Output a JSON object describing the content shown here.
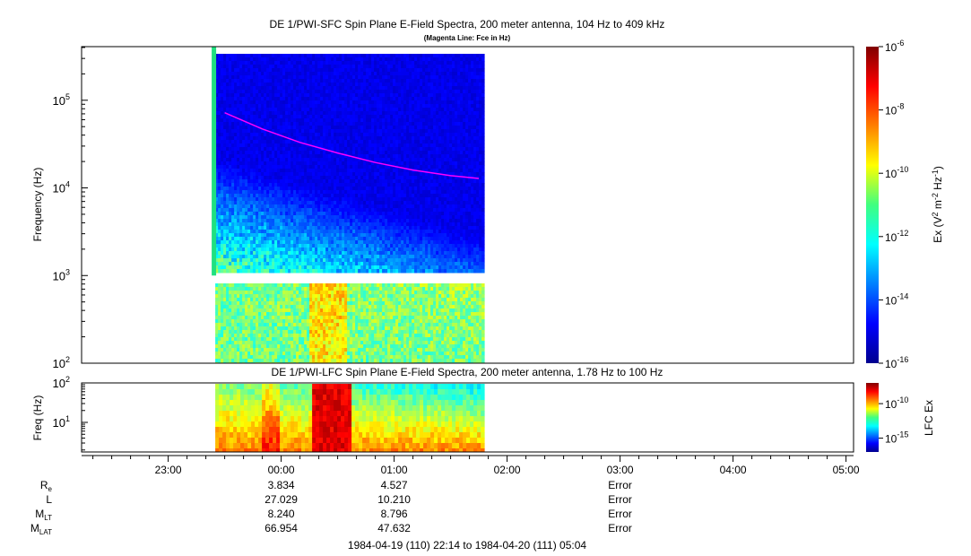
{
  "chart_data": [
    {
      "type": "heatmap",
      "title": "DE 1/PWI-SFC  Spin Plane E-Field Spectra, 200 meter antenna, 104 Hz to 409 kHz",
      "subtitle": "(Magenta Line: Fce in Hz)",
      "ylabel": "Frequency (Hz)",
      "y_scale": "log",
      "ylim": [
        100,
        409000
      ],
      "y_ticks": [
        {
          "value": 100,
          "base": "10",
          "exp": "2"
        },
        {
          "value": 1000,
          "base": "10",
          "exp": "3"
        },
        {
          "value": 10000,
          "base": "10",
          "exp": "4"
        },
        {
          "value": 100000,
          "base": "10",
          "exp": "5"
        }
      ],
      "data_coverage": {
        "start": "1984-04-19T23:25",
        "end": "1984-04-20T01:47",
        "gap_hz": [
          890,
          1000
        ]
      },
      "annotation_line": {
        "name": "Fce",
        "color": "#ff00ff",
        "points": [
          {
            "t": "1984-04-19T23:30",
            "hz": 72000
          },
          {
            "t": "1984-04-19T23:50",
            "hz": 47000
          },
          {
            "t": "1984-04-20T00:10",
            "hz": 33000
          },
          {
            "t": "1984-04-20T00:30",
            "hz": 25000
          },
          {
            "t": "1984-04-20T00:50",
            "hz": 19500
          },
          {
            "t": "1984-04-20T01:10",
            "hz": 16000
          },
          {
            "t": "1984-04-20T01:30",
            "hz": 13800
          },
          {
            "t": "1984-04-20T01:45",
            "hz": 12800
          }
        ]
      },
      "colorbar": {
        "label_parts": {
          "base": "Ex (V",
          "exp1": "2",
          "mid": " m",
          "exp2": "-2",
          "mid2": " Hz",
          "exp3": "-1",
          "end": ")"
        },
        "range_log10": [
          -16,
          -6
        ],
        "ticks": [
          {
            "value": -6,
            "base": "10",
            "exp": "-6"
          },
          {
            "value": -8,
            "base": "10",
            "exp": "-8"
          },
          {
            "value": -10,
            "base": "10",
            "exp": "-10"
          },
          {
            "value": -12,
            "base": "10",
            "exp": "-12"
          },
          {
            "value": -14,
            "base": "10",
            "exp": "-14"
          },
          {
            "value": -16,
            "base": "10",
            "exp": "-16"
          }
        ]
      }
    },
    {
      "type": "heatmap",
      "title": "DE 1/PWI-LFC  Spin Plane E-Field Spectra, 200 meter antenna, 1.78 Hz to 100 Hz",
      "ylabel": "Freq (Hz)",
      "y_scale": "log",
      "ylim": [
        1.78,
        100
      ],
      "y_ticks": [
        {
          "value": 10,
          "base": "10",
          "exp": "1"
        },
        {
          "value": 100,
          "base": "10",
          "exp": "2"
        }
      ],
      "data_coverage": {
        "start": "1984-04-19T23:25",
        "end": "1984-04-20T01:47"
      },
      "colorbar": {
        "label": "LFC Ex",
        "range_log10": [
          -17,
          -7
        ],
        "ticks": [
          {
            "value": -10,
            "base": "10",
            "exp": "-10"
          },
          {
            "value": -15,
            "base": "10",
            "exp": "-15"
          }
        ]
      }
    }
  ],
  "time_axis": {
    "start": "1984-04-19T22:14",
    "end": "1984-04-20T05:04",
    "tick_labels": [
      {
        "t": "1984-04-19T23:00",
        "label": "23:00"
      },
      {
        "t": "1984-04-20T00:00",
        "label": "00:00"
      },
      {
        "t": "1984-04-20T01:00",
        "label": "01:00"
      },
      {
        "t": "1984-04-20T02:00",
        "label": "02:00"
      },
      {
        "t": "1984-04-20T03:00",
        "label": "03:00"
      },
      {
        "t": "1984-04-20T04:00",
        "label": "04:00"
      },
      {
        "t": "1984-04-20T05:00",
        "label": "05:00"
      }
    ]
  },
  "ephemeris": {
    "rows": [
      {
        "label_base": "R",
        "label_sub": "e",
        "values": [
          "3.834",
          "4.527",
          "Error"
        ]
      },
      {
        "label_base": "L",
        "label_sub": "",
        "values": [
          "27.029",
          "10.210",
          "Error"
        ]
      },
      {
        "label_base": "M",
        "label_sub": "LT",
        "values": [
          "8.240",
          "8.796",
          "Error"
        ]
      },
      {
        "label_base": "M",
        "label_sub": "LAT",
        "values": [
          "66.954",
          "47.632",
          "Error"
        ]
      }
    ],
    "value_times": [
      "1984-04-20T00:00",
      "1984-04-20T01:00",
      "1984-04-20T03:00"
    ]
  },
  "footer": "1984-04-19 (110) 22:14 to 1984-04-20 (111) 05:04"
}
